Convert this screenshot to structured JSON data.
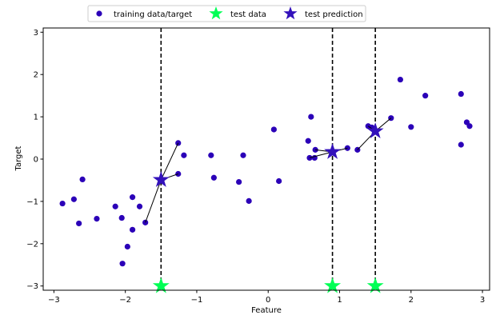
{
  "chart_data": {
    "type": "scatter",
    "xlabel": "Feature",
    "ylabel": "Target",
    "xlim": [
      -3.15,
      3.1
    ],
    "ylim": [
      -3.1,
      3.1
    ],
    "xticks": [
      -3,
      -2,
      -1,
      0,
      1,
      2,
      3
    ],
    "yticks": [
      -3,
      -2,
      -1,
      0,
      1,
      2,
      3
    ],
    "xtick_labels": [
      "−3",
      "−2",
      "−1",
      "0",
      "1",
      "2",
      "3"
    ],
    "ytick_labels": [
      "−3",
      "−2",
      "−1",
      "0",
      "1",
      "2",
      "3"
    ],
    "grid": false,
    "legend": {
      "placement": "top-center, above plot",
      "entries": [
        "training data/target",
        "test data",
        "test prediction"
      ]
    },
    "colors": {
      "training": "#2b00b8",
      "test_data": "#00ff55",
      "test_prediction": "#3311bb",
      "lines": "#000000"
    },
    "series": [
      {
        "name": "training data/target",
        "marker": "circle",
        "points": [
          [
            -2.88,
            -1.05
          ],
          [
            -2.72,
            -0.95
          ],
          [
            -2.65,
            -1.52
          ],
          [
            -2.6,
            -0.48
          ],
          [
            -2.4,
            -1.41
          ],
          [
            -2.14,
            -1.12
          ],
          [
            -2.05,
            -1.39
          ],
          [
            -2.04,
            -2.47
          ],
          [
            -1.97,
            -2.07
          ],
          [
            -1.9,
            -0.9
          ],
          [
            -1.9,
            -1.67
          ],
          [
            -1.8,
            -1.12
          ],
          [
            -1.72,
            -1.5
          ],
          [
            -1.26,
            0.38
          ],
          [
            -1.26,
            -0.35
          ],
          [
            -1.18,
            0.09
          ],
          [
            -0.8,
            0.09
          ],
          [
            -0.76,
            -0.44
          ],
          [
            -0.41,
            -0.54
          ],
          [
            -0.35,
            0.09
          ],
          [
            -0.27,
            -0.99
          ],
          [
            0.08,
            0.7
          ],
          [
            0.15,
            -0.52
          ],
          [
            0.56,
            0.43
          ],
          [
            0.58,
            0.03
          ],
          [
            0.6,
            1.0
          ],
          [
            0.65,
            0.03
          ],
          [
            0.66,
            0.22
          ],
          [
            1.11,
            0.26
          ],
          [
            1.25,
            0.22
          ],
          [
            1.4,
            0.78
          ],
          [
            1.45,
            0.75
          ],
          [
            1.72,
            0.97
          ],
          [
            1.85,
            1.88
          ],
          [
            2.0,
            0.76
          ],
          [
            2.2,
            1.5
          ],
          [
            2.7,
            1.54
          ],
          [
            2.7,
            0.34
          ],
          [
            2.78,
            0.87
          ],
          [
            2.82,
            0.78
          ]
        ]
      },
      {
        "name": "test data",
        "marker": "star",
        "points": [
          [
            -1.5,
            -3.0
          ],
          [
            0.9,
            -3.0
          ],
          [
            1.5,
            -3.0
          ]
        ]
      },
      {
        "name": "test prediction",
        "marker": "star",
        "points": [
          [
            -1.5,
            -0.49
          ],
          [
            0.9,
            0.17
          ],
          [
            1.5,
            0.66
          ]
        ]
      }
    ],
    "vertical_lines": [
      -1.5,
      0.9,
      1.5
    ],
    "neighbor_links": [
      {
        "from": [
          -1.5,
          -0.49
        ],
        "to": [
          -1.26,
          0.38
        ]
      },
      {
        "from": [
          -1.5,
          -0.49
        ],
        "to": [
          -1.26,
          -0.35
        ]
      },
      {
        "from": [
          -1.5,
          -0.49
        ],
        "to": [
          -1.72,
          -1.5
        ]
      },
      {
        "from": [
          0.9,
          0.17
        ],
        "to": [
          0.66,
          0.22
        ]
      },
      {
        "from": [
          0.9,
          0.17
        ],
        "to": [
          1.11,
          0.26
        ]
      },
      {
        "from": [
          0.9,
          0.17
        ],
        "to": [
          0.58,
          0.03
        ]
      },
      {
        "from": [
          1.5,
          0.66
        ],
        "to": [
          1.4,
          0.78
        ]
      },
      {
        "from": [
          1.5,
          0.66
        ],
        "to": [
          1.72,
          0.97
        ]
      },
      {
        "from": [
          1.5,
          0.66
        ],
        "to": [
          1.25,
          0.22
        ]
      }
    ]
  }
}
